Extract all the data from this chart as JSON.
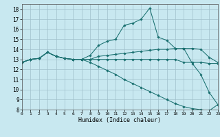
{
  "xlabel": "Humidex (Indice chaleur)",
  "xlim": [
    0,
    23
  ],
  "ylim": [
    8,
    18.5
  ],
  "yticks": [
    8,
    9,
    10,
    11,
    12,
    13,
    14,
    15,
    16,
    17,
    18
  ],
  "xticks": [
    0,
    1,
    2,
    3,
    4,
    5,
    6,
    7,
    8,
    9,
    10,
    11,
    12,
    13,
    14,
    15,
    16,
    17,
    18,
    19,
    20,
    21,
    22,
    23
  ],
  "background_color": "#c8e8f0",
  "grid_color": "#a0c0cc",
  "line_color": "#1a7070",
  "line1_x": [
    0,
    1,
    2,
    3,
    4,
    5,
    6,
    7,
    8,
    9,
    10,
    11,
    12,
    13,
    14,
    15,
    16,
    17,
    18,
    19,
    20,
    21,
    22,
    23
  ],
  "line1_y": [
    12.7,
    13.0,
    13.1,
    13.7,
    13.3,
    13.1,
    13.0,
    13.0,
    13.4,
    14.4,
    14.8,
    15.0,
    16.4,
    16.6,
    17.0,
    18.1,
    15.2,
    14.9,
    14.1,
    14.1,
    12.6,
    11.5,
    9.7,
    8.5
  ],
  "line2_x": [
    0,
    1,
    2,
    3,
    4,
    5,
    6,
    7,
    8,
    9,
    10,
    11,
    12,
    13,
    14,
    15,
    16,
    17,
    18,
    19,
    20,
    21,
    22,
    23
  ],
  "line2_y": [
    12.7,
    13.0,
    13.1,
    13.7,
    13.3,
    13.1,
    13.0,
    13.0,
    13.0,
    13.3,
    13.4,
    13.5,
    13.6,
    13.7,
    13.8,
    13.9,
    14.0,
    14.0,
    14.1,
    14.1,
    14.1,
    14.0,
    13.2,
    12.7
  ],
  "line3_x": [
    0,
    1,
    2,
    3,
    4,
    5,
    6,
    7,
    8,
    9,
    10,
    11,
    12,
    13,
    14,
    15,
    16,
    17,
    18,
    19,
    20,
    21,
    22,
    23
  ],
  "line3_y": [
    12.7,
    13.0,
    13.1,
    13.7,
    13.3,
    13.1,
    13.0,
    13.0,
    13.0,
    13.0,
    13.0,
    13.0,
    13.0,
    13.0,
    13.0,
    13.0,
    13.0,
    13.0,
    13.0,
    12.7,
    12.7,
    12.7,
    12.6,
    12.6
  ],
  "line4_x": [
    0,
    1,
    2,
    3,
    4,
    5,
    6,
    7,
    8,
    9,
    10,
    11,
    12,
    13,
    14,
    15,
    16,
    17,
    18,
    19,
    20,
    21,
    22,
    23
  ],
  "line4_y": [
    12.7,
    13.0,
    13.1,
    13.7,
    13.3,
    13.1,
    13.0,
    13.0,
    12.7,
    12.3,
    11.9,
    11.5,
    11.0,
    10.6,
    10.2,
    9.8,
    9.4,
    9.0,
    8.6,
    8.3,
    8.1,
    8.0,
    7.9,
    8.5
  ]
}
